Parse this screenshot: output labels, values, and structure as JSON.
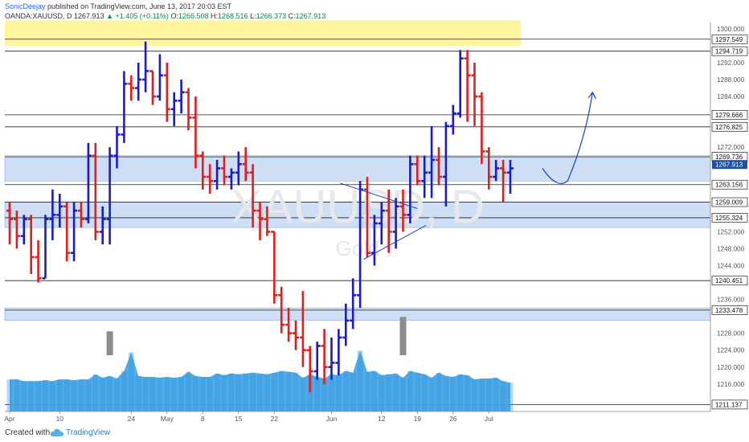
{
  "header": {
    "author": "SonicDeejay",
    "published": "published on TradingView.com, June 13, 2017 20:03 EST",
    "symbol": "OANDA:XAUUSD, D",
    "last": "1267.913",
    "change": "+1.405 (+0.11%)",
    "o_label": "O:",
    "o": "1266.508",
    "h_label": "H:",
    "h": "1268.516",
    "l_label": "L:",
    "l": "1266.373",
    "c_label": "C:",
    "c": "1267.913"
  },
  "watermark": {
    "symbol": "XAUUSD, D",
    "sub": "Gold"
  },
  "footer": {
    "created": "Created with",
    "brand": "TradingView"
  },
  "colors": {
    "up": "#1a1ad6",
    "down": "#e51c1c",
    "volume": "#3fa5e8",
    "volume_spike": "#8c8c8c",
    "zone_blue": "#c4d8f3",
    "zone_yellow": "#fff59d",
    "annotation": "#1a3fc9",
    "price_label_bg": "#1b4fa8"
  },
  "chart_data": {
    "type": "ohlc",
    "x_ticks": [
      {
        "label": "Apr",
        "d": 0
      },
      {
        "label": "10",
        "d": 7
      },
      {
        "label": "24",
        "d": 17
      },
      {
        "label": "May",
        "d": 22
      },
      {
        "label": "8",
        "d": 27
      },
      {
        "label": "15",
        "d": 32
      },
      {
        "label": "22",
        "d": 37
      },
      {
        "label": "Jun",
        "d": 45
      },
      {
        "label": "12",
        "d": 52
      },
      {
        "label": "19",
        "d": 57
      },
      {
        "label": "26",
        "d": 62
      },
      {
        "label": "Jul",
        "d": 67
      }
    ],
    "y_ticks": [
      1300,
      1292,
      1288,
      1284,
      1272,
      1252,
      1248,
      1244,
      1236,
      1228,
      1224,
      1220,
      1216
    ],
    "ylim": [
      1209.5,
      1301.5
    ],
    "levels": [
      "1297.549",
      "1294.719",
      "1279.666",
      "1276.825",
      "1269.736",
      "1263.156",
      "1259.009",
      "1255.324",
      "1240.451",
      "1233.478",
      "1211.137"
    ],
    "current_price": "1267.913",
    "zones": [
      {
        "from": 1296,
        "to": 1302,
        "color": "yellow"
      },
      {
        "from": 1264,
        "to": 1270,
        "color": "blue"
      },
      {
        "from": 1253,
        "to": 1259,
        "color": "blue"
      },
      {
        "from": 1231,
        "to": 1234,
        "color": "blue"
      }
    ],
    "ohlc": [
      [
        1257,
        1259,
        1249,
        1255
      ],
      [
        1255,
        1257,
        1248,
        1251
      ],
      [
        1251,
        1256,
        1249,
        1255
      ],
      [
        1255,
        1256,
        1242,
        1246
      ],
      [
        1246,
        1250,
        1240,
        1241
      ],
      [
        1241,
        1256,
        1241,
        1255
      ],
      [
        1255,
        1262,
        1250,
        1256
      ],
      [
        1256,
        1261,
        1253,
        1258
      ],
      [
        1258,
        1259,
        1245,
        1247
      ],
      [
        1247,
        1259,
        1245,
        1257
      ],
      [
        1257,
        1259,
        1253,
        1255
      ],
      [
        1255,
        1273,
        1254,
        1270
      ],
      [
        1270,
        1273,
        1250,
        1252
      ],
      [
        1252,
        1258,
        1249,
        1255
      ],
      [
        1255,
        1272,
        1249,
        1270
      ],
      [
        1270,
        1277,
        1267,
        1275
      ],
      [
        1275,
        1290,
        1273,
        1287
      ],
      [
        1287,
        1289,
        1283,
        1286
      ],
      [
        1286,
        1292,
        1283,
        1288
      ],
      [
        1288,
        1297,
        1285,
        1290
      ],
      [
        1290,
        1290,
        1282,
        1284
      ],
      [
        1284,
        1294,
        1283,
        1289
      ],
      [
        1289,
        1292,
        1278,
        1281
      ],
      [
        1281,
        1285,
        1277,
        1283
      ],
      [
        1283,
        1288,
        1280,
        1285
      ],
      [
        1285,
        1286,
        1276,
        1279
      ],
      [
        1279,
        1284,
        1267,
        1270
      ],
      [
        1270,
        1271,
        1262,
        1265
      ],
      [
        1265,
        1268,
        1261,
        1264
      ],
      [
        1264,
        1269,
        1262,
        1267
      ],
      [
        1267,
        1270,
        1263,
        1265
      ],
      [
        1265,
        1267,
        1262,
        1266
      ],
      [
        1266,
        1271,
        1263,
        1268
      ],
      [
        1268,
        1272,
        1264,
        1266
      ],
      [
        1266,
        1268,
        1253,
        1257
      ],
      [
        1257,
        1259,
        1250,
        1255
      ],
      [
        1255,
        1258,
        1251,
        1252
      ],
      [
        1252,
        1252,
        1235,
        1237
      ],
      [
        1237,
        1239,
        1228,
        1230
      ],
      [
        1230,
        1234,
        1226,
        1228
      ],
      [
        1228,
        1231,
        1224,
        1227
      ],
      [
        1227,
        1238,
        1220,
        1224
      ],
      [
        1224,
        1225,
        1214,
        1219
      ],
      [
        1219,
        1226,
        1217,
        1225
      ],
      [
        1225,
        1229,
        1216,
        1220
      ],
      [
        1220,
        1227,
        1217,
        1221
      ],
      [
        1221,
        1229,
        1218,
        1227
      ],
      [
        1227,
        1235,
        1225,
        1231
      ],
      [
        1231,
        1241,
        1229,
        1237
      ],
      [
        1237,
        1264,
        1234,
        1262
      ],
      [
        1262,
        1265,
        1246,
        1247
      ],
      [
        1247,
        1256,
        1244,
        1254
      ],
      [
        1254,
        1259,
        1249,
        1257
      ],
      [
        1257,
        1262,
        1247,
        1252
      ],
      [
        1252,
        1260,
        1248,
        1258
      ],
      [
        1258,
        1262,
        1252,
        1256
      ],
      [
        1256,
        1270,
        1254,
        1268
      ],
      [
        1268,
        1270,
        1263,
        1264
      ],
      [
        1264,
        1270,
        1260,
        1266
      ],
      [
        1266,
        1277,
        1260,
        1269
      ],
      [
        1269,
        1272,
        1263,
        1265
      ],
      [
        1265,
        1278,
        1258,
        1277
      ],
      [
        1277,
        1282,
        1275,
        1280
      ],
      [
        1280,
        1295,
        1279,
        1293
      ],
      [
        1293,
        1295,
        1278,
        1289
      ],
      [
        1289,
        1292,
        1277,
        1284
      ],
      [
        1284,
        1285,
        1268,
        1271
      ],
      [
        1271,
        1272,
        1262,
        1265
      ],
      [
        1265,
        1269,
        1264,
        1267
      ],
      [
        1267,
        1269,
        1259,
        1266
      ],
      [
        1266,
        1269,
        1261,
        1267
      ]
    ],
    "volume": [
      38,
      38,
      36,
      36,
      36,
      37,
      36,
      38,
      38,
      37,
      38,
      38,
      44,
      40,
      42,
      39,
      48,
      70,
      42,
      41,
      41,
      40,
      41,
      40,
      41,
      47,
      42,
      41,
      41,
      45,
      43,
      45,
      44,
      45,
      46,
      45,
      44,
      46,
      48,
      47,
      46,
      40,
      44,
      41,
      39,
      44,
      43,
      48,
      46,
      72,
      47,
      48,
      43,
      44,
      45,
      40,
      48,
      46,
      44,
      40,
      46,
      42,
      41,
      44,
      43,
      38,
      39,
      39,
      40,
      36,
      34
    ],
    "volume_peaks": [
      {
        "d": 14,
        "v": 55
      },
      {
        "d": 18,
        "v": 24
      },
      {
        "d": 23,
        "v": 23
      },
      {
        "d": 28,
        "v": 22
      },
      {
        "d": 31,
        "v": 24
      },
      {
        "d": 42,
        "v": 23
      },
      {
        "d": 55,
        "v": 72
      },
      {
        "d": 58,
        "v": 19
      },
      {
        "d": 62,
        "v": 19
      },
      {
        "d": 72,
        "v": 18
      }
    ]
  }
}
